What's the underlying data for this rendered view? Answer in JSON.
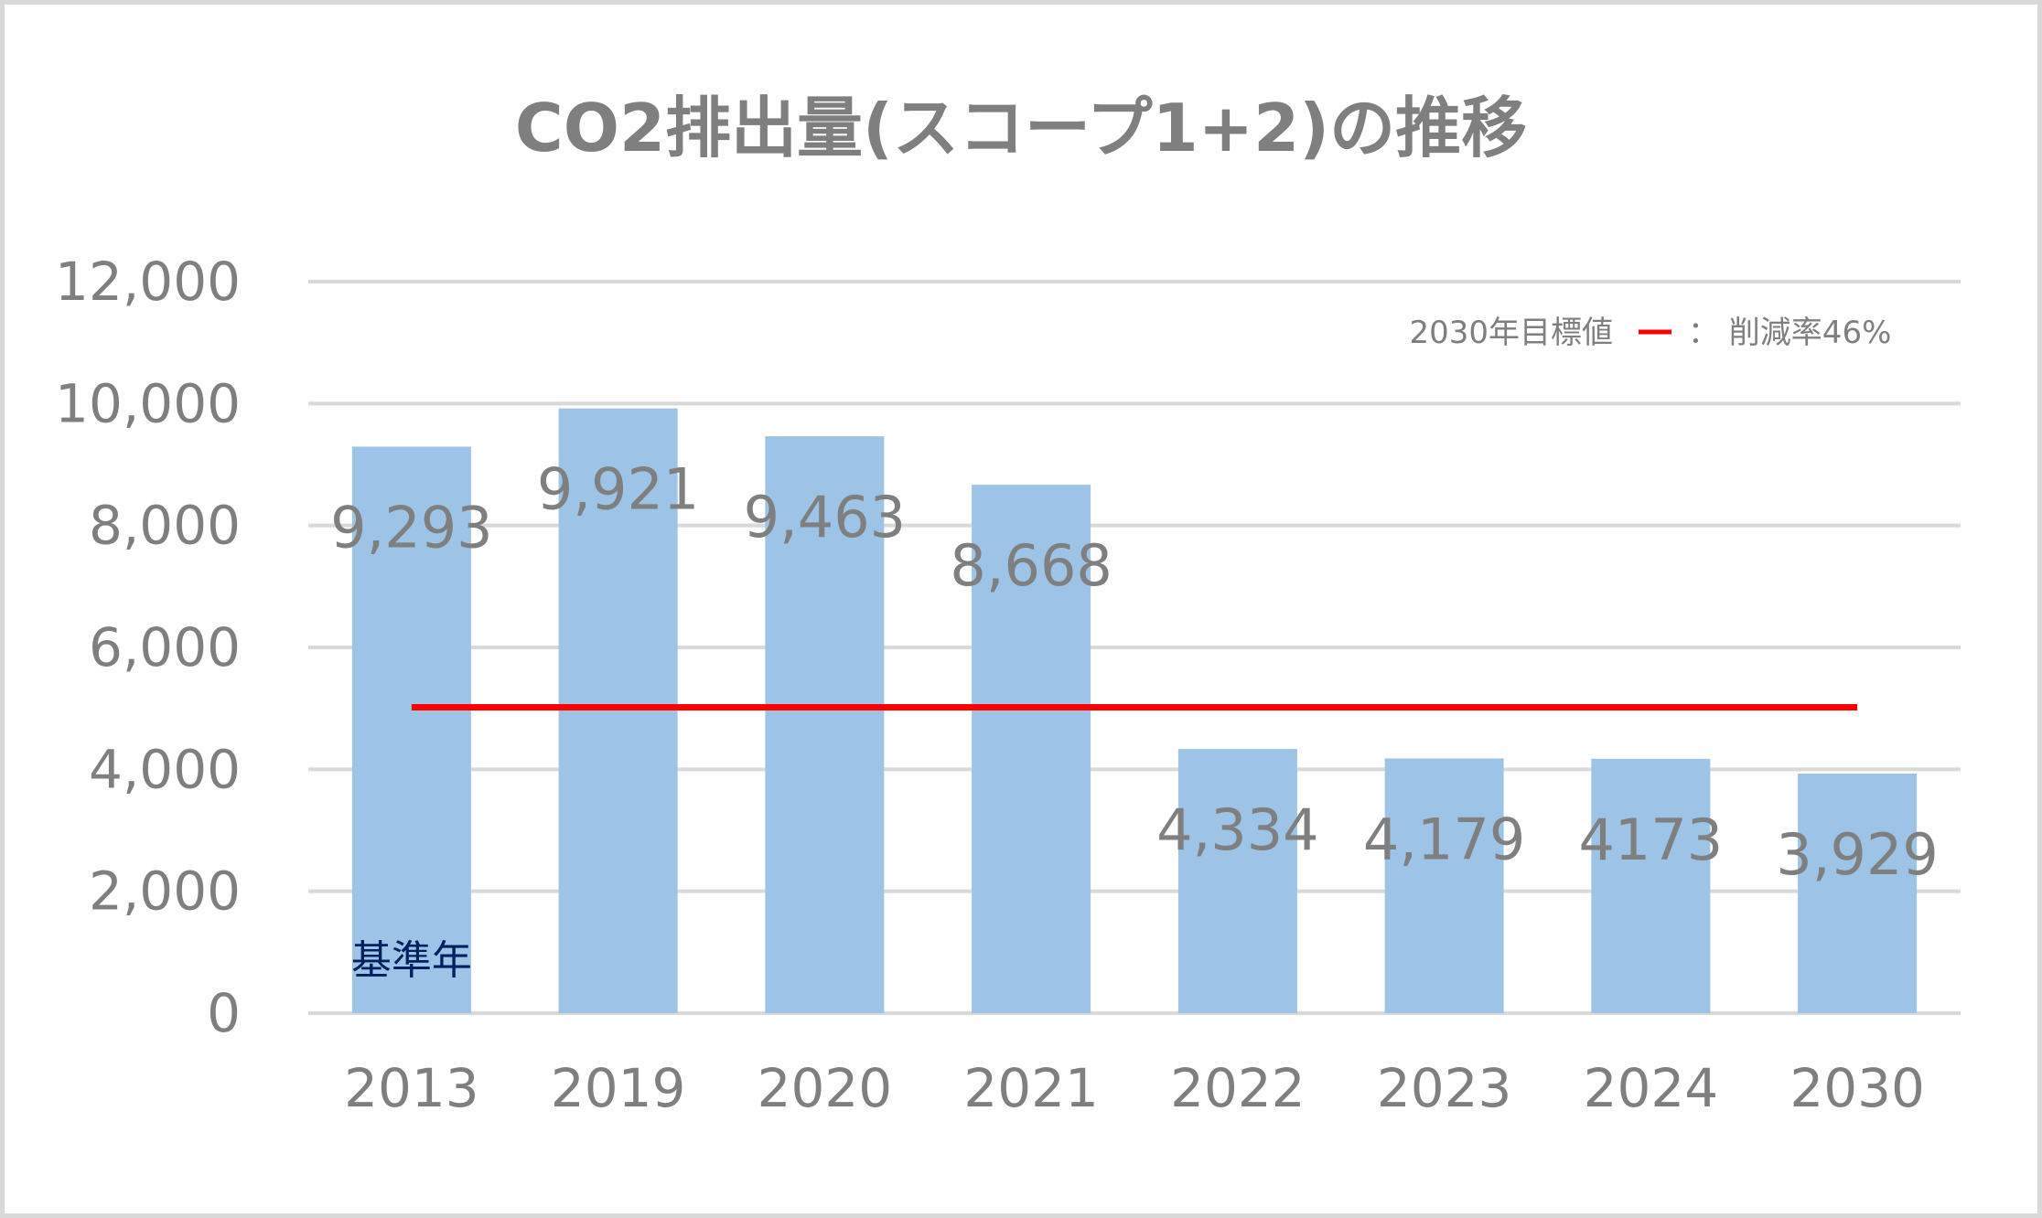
{
  "chart_data": {
    "type": "bar",
    "title": "CO2排出量(スコープ1+2)の推移",
    "categories": [
      "2013",
      "2019",
      "2020",
      "2021",
      "2022",
      "2023",
      "2024",
      "2030"
    ],
    "values": [
      9293,
      9921,
      9463,
      8668,
      4334,
      4179,
      4173,
      3929
    ],
    "data_labels": [
      "9,293",
      "9,921",
      "9,463",
      "8,668",
      "4,334",
      "4,179",
      "4173",
      "3,929"
    ],
    "ylim": [
      0,
      12000
    ],
    "yticks": [
      0,
      2000,
      4000,
      6000,
      8000,
      10000,
      12000
    ],
    "ytick_labels": [
      "0",
      "2,000",
      "4,000",
      "6,000",
      "8,000",
      "10,000",
      "12,000"
    ],
    "grid": true,
    "bar_color": "#9dc3e6",
    "target_line": {
      "value": 5018,
      "color": "#ff0000",
      "from_category": "2013",
      "to_category": "2030",
      "legend_label": "2030年目標値",
      "legend_suffix": "： 削減率46%",
      "legend_position": "top-right"
    },
    "annotation": {
      "text": "基準年",
      "category": "2013",
      "color": "#002060"
    }
  }
}
